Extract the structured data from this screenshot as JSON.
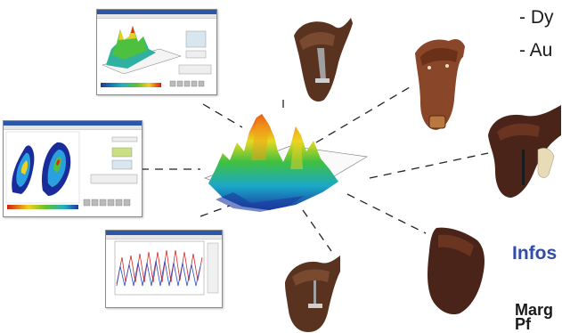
{
  "bullets": [
    "- Dy",
    "- Au"
  ],
  "info_heading": "Infos",
  "contact": {
    "line1": "Marg",
    "line2": "Pf"
  },
  "colors": {
    "heading": "#2f4da5",
    "leather_dark": "#4a2a1c",
    "leather_mid": "#6b3d28",
    "western": "#8a4628"
  },
  "icons": [
    "english-saddle",
    "western-saddle",
    "dressage-saddle",
    "jumping-saddle",
    "pressure-map",
    "pressure-curve-plot"
  ]
}
